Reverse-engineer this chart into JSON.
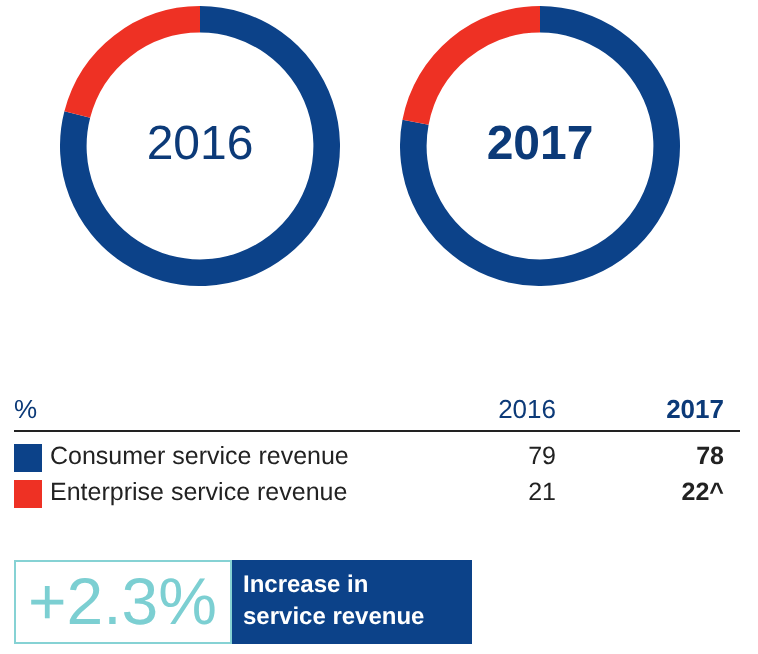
{
  "chart_data": [
    {
      "type": "donut",
      "title": "2016",
      "categories": [
        "Consumer service revenue",
        "Enterprise service revenue"
      ],
      "values": [
        79,
        21
      ],
      "colors": [
        "#0c4289",
        "#ee3124"
      ],
      "data_labels": true,
      "legend": "bottom",
      "annotations": [
        "%"
      ]
    },
    {
      "type": "donut",
      "title": "2017",
      "categories": [
        null,
        null
      ],
      "values": [
        78,
        22
      ],
      "colors": [
        "#0c4289",
        "#ee3124"
      ],
      "annotations": [
        "78",
        "22^"
      ]
    },
    {
      "type": "other",
      "annotations": [
        "+2.3%",
        "Increase in service revenue"
      ]
    }
  ]
}
